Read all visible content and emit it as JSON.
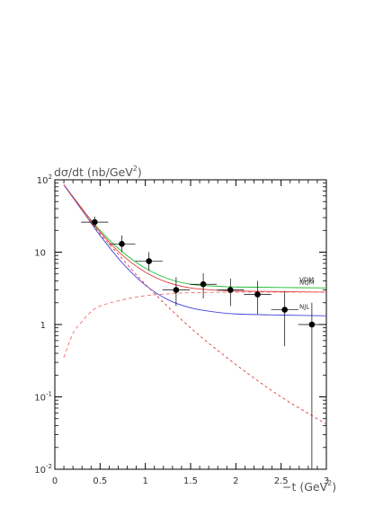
{
  "chart_data": {
    "type": "scatter",
    "ylabel": "dσ/dt (nb/GeV²)",
    "ylabel_parts": {
      "main": "dσ/dt (nb/GeV",
      "sup": "2",
      "end": ")"
    },
    "xlabel": "−t (GeV²)",
    "xlabel_parts": {
      "main": "−t (GeV",
      "sup": "2",
      "end": ")"
    },
    "xlim": [
      0,
      3
    ],
    "ylim": [
      0.01,
      100
    ],
    "yscale": "log",
    "x_ticks": [
      {
        "value": 0,
        "label": "0"
      },
      {
        "value": 0.5,
        "label": "0.5"
      },
      {
        "value": 1,
        "label": "1"
      },
      {
        "value": 1.5,
        "label": "1.5"
      },
      {
        "value": 2,
        "label": "2"
      },
      {
        "value": 2.5,
        "label": "2.5"
      },
      {
        "value": 3,
        "label": "3"
      }
    ],
    "y_ticks": [
      {
        "value": 0.01,
        "base": "10",
        "exp": "-2"
      },
      {
        "value": 0.1,
        "base": "10",
        "exp": "-1"
      },
      {
        "value": 1,
        "base": "1",
        "exp": ""
      },
      {
        "value": 10,
        "base": "10",
        "exp": ""
      },
      {
        "value": 100,
        "base": "10",
        "exp": "2"
      }
    ],
    "data_points": {
      "x": [
        0.44,
        0.74,
        1.04,
        1.34,
        1.64,
        1.94,
        2.24,
        2.54,
        2.84
      ],
      "y": [
        26,
        13,
        7.5,
        3.0,
        3.6,
        3.0,
        2.6,
        1.6,
        1.0
      ],
      "x_err": [
        0.15,
        0.15,
        0.15,
        0.15,
        0.15,
        0.15,
        0.15,
        0.15,
        0.15
      ],
      "y_err_low": [
        4,
        3,
        2,
        1.2,
        1.3,
        1.2,
        1.2,
        1.1,
        0.99
      ],
      "y_err_high": [
        5,
        4,
        2.5,
        1.5,
        1.5,
        1.3,
        1.4,
        1.3,
        1.0
      ],
      "color": "#000000"
    },
    "curves": [
      {
        "label": "VDM",
        "color": "#22bb33",
        "dash": "",
        "x": [
          0.1,
          0.3,
          0.5,
          0.75,
          1.0,
          1.25,
          1.5,
          1.75,
          2.0,
          2.5,
          3.0
        ],
        "y": [
          85,
          40,
          20,
          10,
          6.0,
          4.3,
          3.6,
          3.4,
          3.3,
          3.25,
          3.2
        ]
      },
      {
        "label": "NQM",
        "color": "#e03a3a",
        "dash": "",
        "x": [
          0.1,
          0.3,
          0.5,
          0.75,
          1.0,
          1.25,
          1.5,
          1.75,
          2.0,
          2.5,
          3.0
        ],
        "y": [
          85,
          40,
          19,
          9.0,
          5.3,
          3.8,
          3.2,
          3.0,
          2.9,
          2.85,
          2.8
        ]
      },
      {
        "label": "NJL",
        "color": "#4444dd",
        "dash": "",
        "x": [
          0.1,
          0.3,
          0.5,
          0.75,
          1.0,
          1.25,
          1.5,
          1.75,
          2.0,
          2.5,
          3.0
        ],
        "y": [
          85,
          38,
          17,
          7.0,
          3.5,
          2.2,
          1.7,
          1.5,
          1.4,
          1.35,
          1.32
        ]
      },
      {
        "label": "",
        "color": "#f07070",
        "dash": "4,3",
        "x": [
          0.1,
          0.2,
          0.3,
          0.4,
          0.5,
          0.75,
          1.0,
          1.25,
          1.5,
          2.0,
          2.5,
          3.0
        ],
        "y": [
          0.35,
          0.75,
          1.1,
          1.5,
          1.8,
          2.2,
          2.5,
          2.65,
          2.75,
          2.8,
          2.8,
          2.8
        ]
      },
      {
        "label": "",
        "color": "#e03a3a",
        "dash": "3,3",
        "x": [
          0.1,
          0.3,
          0.5,
          0.75,
          1.0,
          1.5,
          2.0,
          2.5,
          3.0
        ],
        "y": [
          85,
          38,
          18,
          8.0,
          3.6,
          0.9,
          0.28,
          0.1,
          0.042
        ]
      }
    ],
    "model_labels": [
      "VDM",
      "NQM",
      "NJL"
    ],
    "grid": false,
    "legend": "inline-right"
  }
}
